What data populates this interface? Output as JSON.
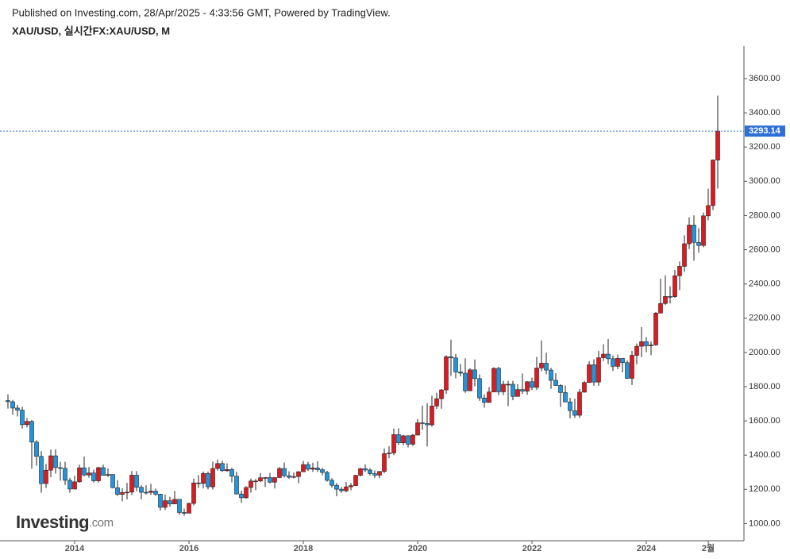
{
  "chart_data": {
    "type": "candlestick",
    "title": "Published on Investing.com, 28/Apr/2025 - 4:33:56 GMT, Powered by TradingView.",
    "subtitle": "XAU/USD, 실시간FX:XAU/USD, M",
    "logo_main": "Investing",
    "logo_suffix": ".com",
    "categories": [
      null,
      null,
      null,
      null,
      null,
      null,
      null,
      null,
      null,
      null,
      null,
      null,
      null,
      null,
      "2014",
      null,
      null,
      null,
      null,
      null,
      null,
      null,
      null,
      null,
      null,
      null,
      null,
      null,
      null,
      null,
      null,
      null,
      null,
      null,
      null,
      null,
      null,
      null,
      "2016",
      null,
      null,
      null,
      null,
      null,
      null,
      null,
      null,
      null,
      null,
      null,
      null,
      null,
      null,
      null,
      null,
      null,
      null,
      null,
      null,
      null,
      null,
      null,
      "2018",
      null,
      null,
      null,
      null,
      null,
      null,
      null,
      null,
      null,
      null,
      null,
      null,
      null,
      null,
      null,
      null,
      null,
      null,
      null,
      null,
      null,
      null,
      null,
      "2020",
      null,
      null,
      null,
      null,
      null,
      null,
      null,
      null,
      null,
      null,
      null,
      null,
      null,
      null,
      null,
      null,
      null,
      null,
      null,
      null,
      null,
      null,
      null,
      "2022",
      null,
      null,
      null,
      null,
      null,
      null,
      null,
      null,
      null,
      null,
      null,
      null,
      null,
      null,
      null,
      null,
      null,
      null,
      null,
      null,
      null,
      null,
      null,
      "2024",
      null,
      null,
      null,
      null,
      null,
      null,
      null,
      null,
      null,
      null,
      null,
      null,
      "2월",
      null,
      null
    ],
    "open": [
      1719,
      1712,
      1675,
      1663,
      1578,
      1597,
      1476,
      1393,
      1234,
      1312,
      1396,
      1327,
      1323,
      1253,
      1202,
      1244,
      1326,
      1284,
      1296,
      1250,
      1327,
      1282,
      1287,
      1210,
      1171,
      1182,
      1184,
      1283,
      1212,
      1183,
      1182,
      1190,
      1172,
      1095,
      1134,
      1115,
      1142,
      1065,
      1061,
      1118,
      1238,
      1235,
      1293,
      1215,
      1322,
      1351,
      1309,
      1316,
      1277,
      1173,
      1151,
      1211,
      1249,
      1249,
      1268,
      1269,
      1242,
      1269,
      1322,
      1280,
      1271,
      1275,
      1303,
      1345,
      1318,
      1325,
      1315,
      1299,
      1253,
      1224,
      1201,
      1192,
      1215,
      1222,
      1282,
      1321,
      1313,
      1292,
      1283,
      1305,
      1409,
      1413,
      1520,
      1472,
      1513,
      1464,
      1517,
      1589,
      1585,
      1577,
      1687,
      1730,
      1781,
      1975,
      1968,
      1886,
      1879,
      1776,
      1898,
      1847,
      1734,
      1708,
      1769,
      1907,
      1770,
      1814,
      1814,
      1743,
      1783,
      1774,
      1829,
      1796,
      1909,
      1937,
      1897,
      1837,
      1807,
      1766,
      1711,
      1660,
      1633,
      1768,
      1824,
      1928,
      1827,
      1969,
      1990,
      1963,
      1919,
      1965,
      1940,
      1849,
      1983,
      2036,
      2063,
      2039,
      2044,
      2230,
      2286,
      2327,
      2326,
      2448,
      2503,
      2635,
      2744,
      2643,
      2625,
      2798,
      2858,
      3124
    ],
    "high": [
      1755,
      1723,
      1694,
      1683,
      1616,
      1605,
      1488,
      1423,
      1348,
      1433,
      1434,
      1361,
      1361,
      1267,
      1280,
      1345,
      1392,
      1331,
      1315,
      1332,
      1345,
      1323,
      1287,
      1255,
      1207,
      1238,
      1307,
      1307,
      1224,
      1224,
      1232,
      1205,
      1175,
      1170,
      1157,
      1191,
      1141,
      1088,
      1123,
      1263,
      1283,
      1304,
      1304,
      1362,
      1375,
      1367,
      1352,
      1326,
      1304,
      1193,
      1219,
      1264,
      1261,
      1295,
      1272,
      1296,
      1270,
      1331,
      1357,
      1306,
      1299,
      1307,
      1366,
      1361,
      1356,
      1365,
      1326,
      1309,
      1266,
      1237,
      1214,
      1243,
      1237,
      1284,
      1326,
      1346,
      1324,
      1310,
      1306,
      1439,
      1452,
      1555,
      1557,
      1518,
      1516,
      1524,
      1611,
      1689,
      1704,
      1748,
      1765,
      1786,
      1984,
      2075,
      1992,
      1933,
      1966,
      1908,
      1959,
      1872,
      1755,
      1798,
      1913,
      1916,
      1834,
      1834,
      1834,
      1814,
      1877,
      1831,
      1853,
      1974,
      2070,
      1998,
      1910,
      1879,
      1814,
      1807,
      1735,
      1730,
      1786,
      1833,
      1949,
      1960,
      2009,
      2048,
      2079,
      1983,
      1987,
      1949,
      1953,
      2009,
      2052,
      2148,
      2088,
      2065,
      2236,
      2431,
      2450,
      2387,
      2483,
      2531,
      2685,
      2790,
      2801,
      2726,
      2817,
      2956,
      3128,
      3500
    ],
    "low": [
      1672,
      1636,
      1626,
      1555,
      1562,
      1321,
      1338,
      1180,
      1208,
      1271,
      1292,
      1251,
      1226,
      1180,
      1200,
      1239,
      1277,
      1268,
      1240,
      1240,
      1281,
      1273,
      1206,
      1161,
      1131,
      1142,
      1167,
      1190,
      1142,
      1170,
      1168,
      1162,
      1077,
      1080,
      1099,
      1136,
      1052,
      1046,
      1061,
      1107,
      1208,
      1207,
      1200,
      1199,
      1310,
      1302,
      1303,
      1241,
      1171,
      1122,
      1146,
      1180,
      1195,
      1242,
      1214,
      1236,
      1205,
      1267,
      1270,
      1261,
      1264,
      1236,
      1302,
      1307,
      1303,
      1302,
      1282,
      1245,
      1211,
      1160,
      1180,
      1183,
      1196,
      1221,
      1276,
      1301,
      1281,
      1266,
      1266,
      1295,
      1382,
      1400,
      1459,
      1458,
      1445,
      1454,
      1517,
      1548,
      1451,
      1566,
      1670,
      1671,
      1757,
      1863,
      1849,
      1860,
      1764,
      1775,
      1802,
      1717,
      1677,
      1706,
      1768,
      1750,
      1751,
      1687,
      1721,
      1746,
      1758,
      1753,
      1780,
      1781,
      1890,
      1872,
      1787,
      1805,
      1681,
      1709,
      1615,
      1618,
      1617,
      1765,
      1824,
      1805,
      1805,
      1950,
      1932,
      1893,
      1902,
      1884,
      1846,
      1810,
      1931,
      1973,
      2002,
      1984,
      2039,
      2228,
      2277,
      2286,
      2319,
      2364,
      2471,
      2604,
      2536,
      2583,
      2614,
      2772,
      2832,
      2957
    ],
    "close": [
      1712,
      1675,
      1663,
      1578,
      1597,
      1476,
      1393,
      1234,
      1312,
      1396,
      1327,
      1323,
      1253,
      1202,
      1244,
      1326,
      1284,
      1296,
      1250,
      1327,
      1282,
      1287,
      1210,
      1171,
      1182,
      1184,
      1283,
      1212,
      1183,
      1182,
      1190,
      1172,
      1095,
      1134,
      1115,
      1142,
      1065,
      1061,
      1118,
      1238,
      1235,
      1293,
      1215,
      1322,
      1351,
      1309,
      1316,
      1277,
      1173,
      1151,
      1211,
      1249,
      1249,
      1268,
      1269,
      1242,
      1269,
      1322,
      1280,
      1271,
      1275,
      1303,
      1345,
      1318,
      1325,
      1315,
      1299,
      1253,
      1224,
      1201,
      1192,
      1215,
      1222,
      1282,
      1321,
      1313,
      1292,
      1283,
      1305,
      1409,
      1413,
      1520,
      1472,
      1513,
      1464,
      1517,
      1589,
      1585,
      1577,
      1687,
      1730,
      1781,
      1975,
      1968,
      1886,
      1879,
      1776,
      1898,
      1847,
      1734,
      1708,
      1769,
      1907,
      1770,
      1814,
      1814,
      1743,
      1783,
      1774,
      1829,
      1796,
      1909,
      1937,
      1897,
      1837,
      1807,
      1766,
      1711,
      1660,
      1633,
      1768,
      1824,
      1928,
      1827,
      1969,
      1990,
      1963,
      1919,
      1965,
      1940,
      1849,
      1983,
      2036,
      2063,
      2039,
      2044,
      2230,
      2286,
      2327,
      2326,
      2448,
      2503,
      2635,
      2744,
      2643,
      2625,
      2798,
      2858,
      3124,
      3293.14
    ],
    "ylim": [
      900,
      3790
    ],
    "yticks": [
      {
        "value": 1000,
        "label": "1000.00"
      },
      {
        "value": 1200,
        "label": "1200.00"
      },
      {
        "value": 1400,
        "label": "1400.00"
      },
      {
        "value": 1600,
        "label": "1600.00"
      },
      {
        "value": 1800,
        "label": "1800.00"
      },
      {
        "value": 2000,
        "label": "2000.00"
      },
      {
        "value": 2200,
        "label": "2200.00"
      },
      {
        "value": 2400,
        "label": "2400.00"
      },
      {
        "value": 2600,
        "label": "2600.00"
      },
      {
        "value": 2800,
        "label": "2800.00"
      },
      {
        "value": 3000,
        "label": "3000.00"
      },
      {
        "value": 3200,
        "label": "3200.00"
      },
      {
        "value": 3400,
        "label": "3400.00"
      },
      {
        "value": 3600,
        "label": "3600.00"
      }
    ],
    "up_color": "#e0191e",
    "down_color": "#1f95e0",
    "last_price_color": "#2d6fd6"
  }
}
